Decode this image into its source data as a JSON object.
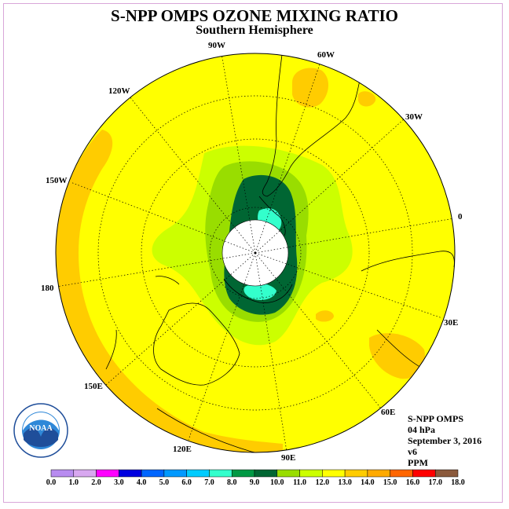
{
  "header": {
    "title": "S-NPP OMPS OZONE MIXING RATIO",
    "subtitle": "Southern Hemisphere"
  },
  "map": {
    "projection": "south-polar-stereographic",
    "fill_color": "#ffff00",
    "longitude_labels": [
      "90W",
      "60W",
      "30W",
      "0",
      "30E",
      "60E",
      "90E",
      "120E",
      "150E",
      "180",
      "150W",
      "120W"
    ]
  },
  "info": {
    "instrument": "S-NPP OMPS",
    "level": "04 hPa",
    "date": "September 3, 2016",
    "version": "v6",
    "units": "PPM"
  },
  "colorbar": {
    "ticks": [
      "0.0",
      "1.0",
      "2.0",
      "3.0",
      "4.0",
      "5.0",
      "6.0",
      "7.0",
      "8.0",
      "9.0",
      "10.0",
      "11.0",
      "12.0",
      "13.0",
      "14.0",
      "15.0",
      "16.0",
      "17.0",
      "18.0"
    ],
    "colors": [
      "#b88cf0",
      "#d8a8f0",
      "#ff00ff",
      "#0000e0",
      "#0066ff",
      "#0099ff",
      "#00ccff",
      "#33ffcc",
      "#009944",
      "#006633",
      "#99dd00",
      "#ccff00",
      "#ffff00",
      "#ffcc00",
      "#ffaa00",
      "#ff6600",
      "#ff0000",
      "#8b5a3c"
    ]
  },
  "logo": {
    "text": "NOAA",
    "ring_text": "NATIONAL OCEANIC AND ATMOSPHERIC ADMINISTRATION · U.S. DEPARTMENT OF COMMERCE"
  }
}
